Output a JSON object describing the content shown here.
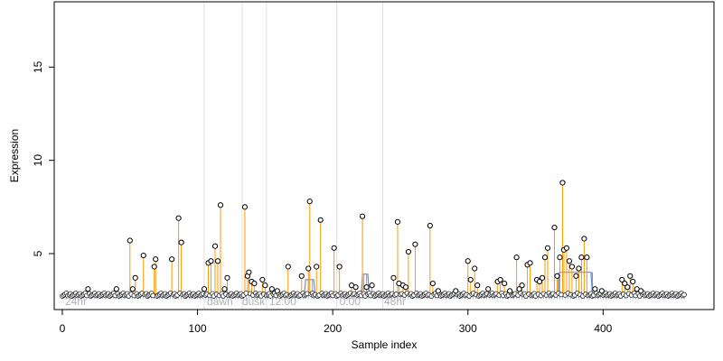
{
  "chart_data": {
    "type": "scatter",
    "title": "",
    "xlabel": "Sample index",
    "ylabel": "Expression",
    "xlim": [
      -6,
      482
    ],
    "ylim": [
      2,
      18.5
    ],
    "x_ticks": [
      0,
      100,
      200,
      300,
      400
    ],
    "y_ticks": [
      5,
      10,
      15
    ],
    "vertical_lines": [
      105,
      133,
      151,
      203,
      237
    ],
    "region_labels": [
      {
        "text": "24hr",
        "x": 2
      },
      {
        "text": "dawn",
        "x": 107
      },
      {
        "text": "dusk",
        "x": 133
      },
      {
        "text": "12:00",
        "x": 153
      },
      {
        "text": "0:00",
        "x": 205
      },
      {
        "text": "48hr",
        "x": 238
      }
    ],
    "baseline": 2.8,
    "colors": {
      "spike": "#ff9900",
      "fit": "#6f8fd8",
      "point_fill": "#ffffff",
      "point_stroke": "#000000",
      "vline": "#e0e0e0"
    },
    "series": [
      {
        "kind": "points",
        "points": [
          [
            19,
            3.1
          ],
          [
            40,
            3.1
          ],
          [
            50,
            5.7
          ],
          [
            52,
            3.1
          ],
          [
            54,
            3.7
          ],
          [
            60,
            4.9
          ],
          [
            68,
            4.3
          ],
          [
            69,
            4.7
          ],
          [
            81,
            4.7
          ],
          [
            86,
            6.9
          ],
          [
            88,
            5.6
          ],
          [
            105,
            3.1
          ],
          [
            108,
            4.5
          ],
          [
            110,
            4.6
          ],
          [
            113,
            5.4
          ],
          [
            115,
            4.6
          ],
          [
            117,
            7.6
          ],
          [
            120,
            3.1
          ],
          [
            122,
            3.7
          ],
          [
            135,
            7.5
          ],
          [
            137,
            3.8
          ],
          [
            138,
            4.0
          ],
          [
            140,
            3.5
          ],
          [
            142,
            3.4
          ],
          [
            148,
            3.6
          ],
          [
            150,
            3.3
          ],
          [
            155,
            3.1
          ],
          [
            159,
            3.0
          ],
          [
            167,
            4.3
          ],
          [
            177,
            3.8
          ],
          [
            182,
            4.2
          ],
          [
            183,
            7.8
          ],
          [
            188,
            4.3
          ],
          [
            191,
            6.8
          ],
          [
            201,
            5.3
          ],
          [
            205,
            4.3
          ],
          [
            214,
            3.3
          ],
          [
            217,
            3.2
          ],
          [
            222,
            7.0
          ],
          [
            225,
            3.2
          ],
          [
            229,
            3.3
          ],
          [
            245,
            3.7
          ],
          [
            248,
            6.7
          ],
          [
            249,
            3.4
          ],
          [
            252,
            3.3
          ],
          [
            254,
            3.2
          ],
          [
            256,
            5.1
          ],
          [
            261,
            5.5
          ],
          [
            272,
            6.5
          ],
          [
            274,
            3.4
          ],
          [
            278,
            3.0
          ],
          [
            291,
            3.0
          ],
          [
            300,
            4.6
          ],
          [
            302,
            3.6
          ],
          [
            305,
            4.2
          ],
          [
            307,
            3.3
          ],
          [
            315,
            3.1
          ],
          [
            322,
            3.5
          ],
          [
            324,
            3.6
          ],
          [
            327,
            3.4
          ],
          [
            331,
            3.0
          ],
          [
            336,
            4.8
          ],
          [
            338,
            3.1
          ],
          [
            340,
            3.3
          ],
          [
            344,
            4.4
          ],
          [
            346,
            4.5
          ],
          [
            351,
            3.6
          ],
          [
            353,
            3.5
          ],
          [
            355,
            3.7
          ],
          [
            357,
            4.8
          ],
          [
            359,
            5.3
          ],
          [
            364,
            6.4
          ],
          [
            366,
            3.8
          ],
          [
            368,
            4.8
          ],
          [
            370,
            8.8
          ],
          [
            371,
            5.2
          ],
          [
            373,
            5.3
          ],
          [
            375,
            4.6
          ],
          [
            377,
            4.3
          ],
          [
            380,
            3.8
          ],
          [
            382,
            4.2
          ],
          [
            384,
            4.8
          ],
          [
            386,
            5.8
          ],
          [
            388,
            4.8
          ],
          [
            394,
            3.1
          ],
          [
            399,
            3.0
          ],
          [
            414,
            3.6
          ],
          [
            416,
            3.4
          ],
          [
            418,
            3.2
          ],
          [
            420,
            3.8
          ],
          [
            422,
            3.5
          ],
          [
            425,
            3.1
          ],
          [
            428,
            3.0
          ]
        ]
      }
    ]
  }
}
